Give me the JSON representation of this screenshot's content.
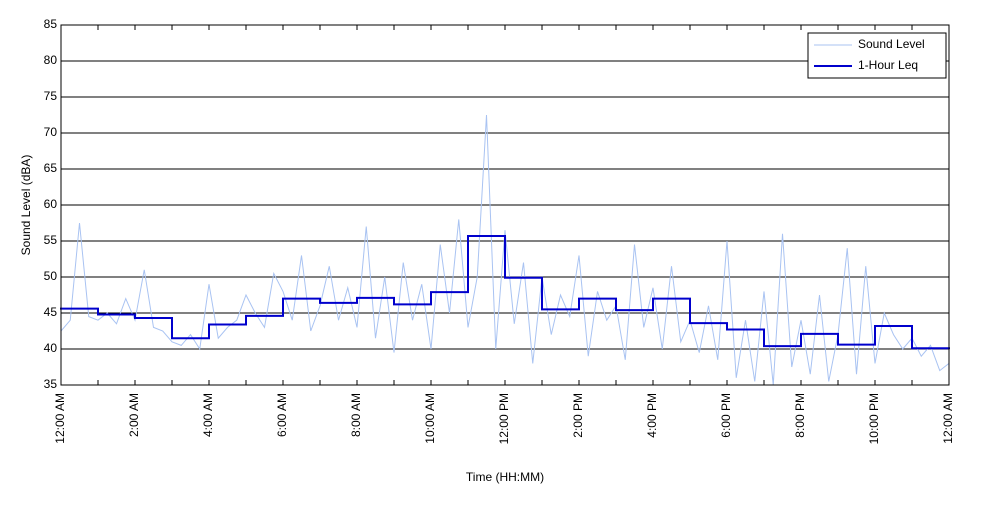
{
  "chart_data": {
    "type": "line",
    "xlabel": "Time (HH:MM)",
    "ylabel": "Sound Level (dBA)",
    "xlim": [
      0,
      24
    ],
    "ylim": [
      35,
      85
    ],
    "xticks": [
      {
        "value": 0,
        "label": "12:00 AM"
      },
      {
        "value": 2,
        "label": "2:00 AM"
      },
      {
        "value": 4,
        "label": "4:00 AM"
      },
      {
        "value": 6,
        "label": "6:00 AM"
      },
      {
        "value": 8,
        "label": "8:00 AM"
      },
      {
        "value": 10,
        "label": "10:00 AM"
      },
      {
        "value": 12,
        "label": "12:00 PM"
      },
      {
        "value": 14,
        "label": "2:00 PM"
      },
      {
        "value": 16,
        "label": "4:00 PM"
      },
      {
        "value": 18,
        "label": "6:00 PM"
      },
      {
        "value": 20,
        "label": "8:00 PM"
      },
      {
        "value": 22,
        "label": "10:00 PM"
      },
      {
        "value": 24,
        "label": "12:00 AM"
      }
    ],
    "xminorticks": [
      1,
      3,
      5,
      7,
      9,
      11,
      13,
      15,
      17,
      19,
      21,
      23
    ],
    "yticks": [
      35,
      40,
      45,
      50,
      55,
      60,
      65,
      70,
      75,
      80,
      85
    ],
    "grid": true,
    "legend": "upper right",
    "series": [
      {
        "name": "Sound Level",
        "color": "#a9c3f2",
        "draw": "line",
        "x": [
          0,
          0.25,
          0.5,
          0.75,
          1,
          1.25,
          1.5,
          1.75,
          2,
          2.25,
          2.5,
          2.75,
          3,
          3.25,
          3.5,
          3.75,
          4,
          4.25,
          4.5,
          4.75,
          5,
          5.25,
          5.5,
          5.75,
          6,
          6.25,
          6.5,
          6.75,
          7,
          7.25,
          7.5,
          7.75,
          8,
          8.25,
          8.5,
          8.75,
          9,
          9.25,
          9.5,
          9.75,
          10,
          10.25,
          10.5,
          10.75,
          11,
          11.25,
          11.5,
          11.75,
          12,
          12.25,
          12.5,
          12.75,
          13,
          13.25,
          13.5,
          13.75,
          14,
          14.25,
          14.5,
          14.75,
          15,
          15.25,
          15.5,
          15.75,
          16,
          16.25,
          16.5,
          16.75,
          17,
          17.25,
          17.5,
          17.75,
          18,
          18.25,
          18.5,
          18.75,
          19,
          19.25,
          19.5,
          19.75,
          20,
          20.25,
          20.5,
          20.75,
          21,
          21.25,
          21.5,
          21.75,
          22,
          22.25,
          22.5,
          22.75,
          23,
          23.25,
          23.5,
          23.75,
          24
        ],
        "values": [
          42.5,
          44,
          57.5,
          44.5,
          44,
          45,
          43.5,
          47,
          44,
          51,
          43,
          42.5,
          41,
          40.5,
          42,
          40,
          49,
          41.5,
          43,
          44,
          47.5,
          45,
          43,
          50.5,
          48,
          44,
          53,
          42.5,
          46,
          51.5,
          44,
          48.5,
          43,
          57,
          41.5,
          50,
          39.5,
          52,
          44,
          49,
          40,
          54.5,
          45,
          58,
          43,
          50,
          72.5,
          40,
          56.5,
          43.5,
          52,
          38,
          50,
          42,
          47.5,
          44.5,
          53,
          39,
          48,
          44,
          46,
          38.5,
          54.5,
          43,
          48.5,
          40,
          51.5,
          41,
          44,
          39.5,
          46,
          38.5,
          55,
          36,
          44,
          35.5,
          48,
          35,
          56,
          37.5,
          44,
          36.5,
          47.5,
          35.5,
          42,
          54,
          36.5,
          51.5,
          38,
          45,
          42,
          40,
          41.5,
          39,
          40.5,
          37,
          38
        ]
      },
      {
        "name": "1-Hour Leq",
        "color": "#0000cc",
        "draw": "step",
        "x": [
          0,
          1,
          2,
          3,
          4,
          5,
          6,
          7,
          8,
          9,
          10,
          11,
          12,
          13,
          14,
          15,
          16,
          17,
          18,
          19,
          20,
          21,
          22,
          23
        ],
        "values": [
          45.6,
          44.8,
          44.3,
          41.5,
          43.4,
          44.6,
          47.0,
          46.4,
          47.1,
          46.2,
          47.9,
          55.7,
          49.9,
          45.5,
          47.0,
          45.4,
          47.0,
          43.6,
          42.7,
          40.4,
          42.1,
          40.6,
          43.2,
          40.1
        ]
      }
    ]
  }
}
